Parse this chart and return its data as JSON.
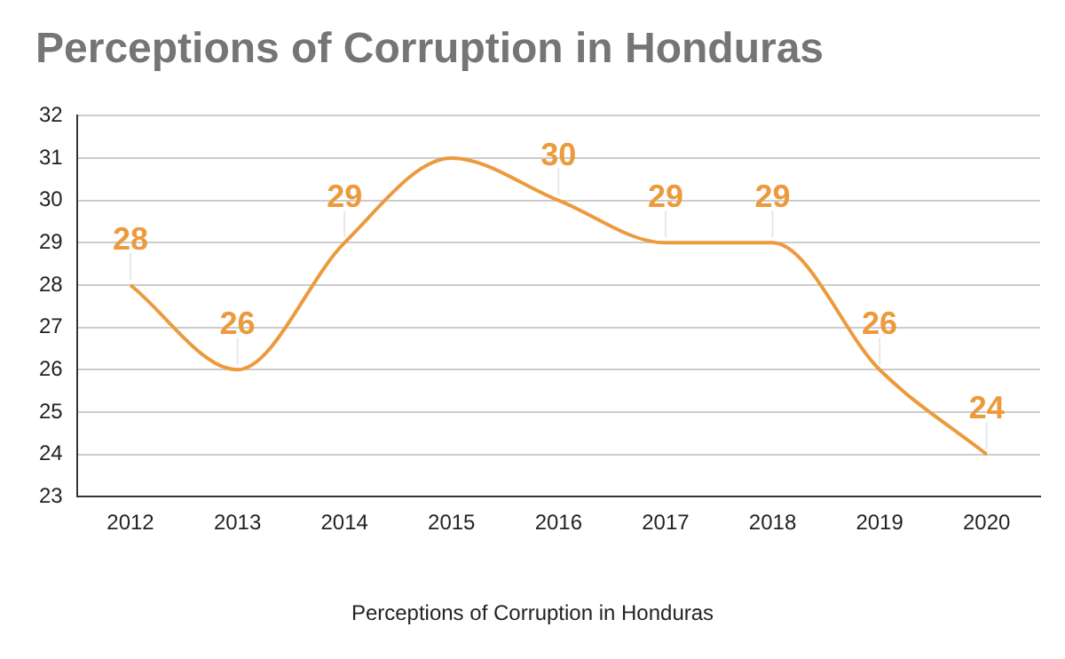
{
  "chart_data": {
    "type": "line",
    "title": "Perceptions of Corruption in Honduras",
    "xlabel": "Perceptions of Corruption in Honduras",
    "categories": [
      "2012",
      "2013",
      "2014",
      "2015",
      "2016",
      "2017",
      "2018",
      "2019",
      "2020"
    ],
    "series": [
      {
        "color": "#ec9a3c",
        "values": [
          28,
          26,
          29,
          31,
          30,
          29,
          29,
          26,
          24
        ],
        "value_labels": [
          "28",
          "26",
          "29",
          null,
          "30",
          "29",
          "29",
          "26",
          "24"
        ]
      }
    ],
    "ylim": [
      23,
      32
    ],
    "yticks": [
      23,
      24,
      25,
      26,
      27,
      28,
      29,
      30,
      31,
      32
    ],
    "grid": "y",
    "legend": false,
    "marker": "none"
  }
}
